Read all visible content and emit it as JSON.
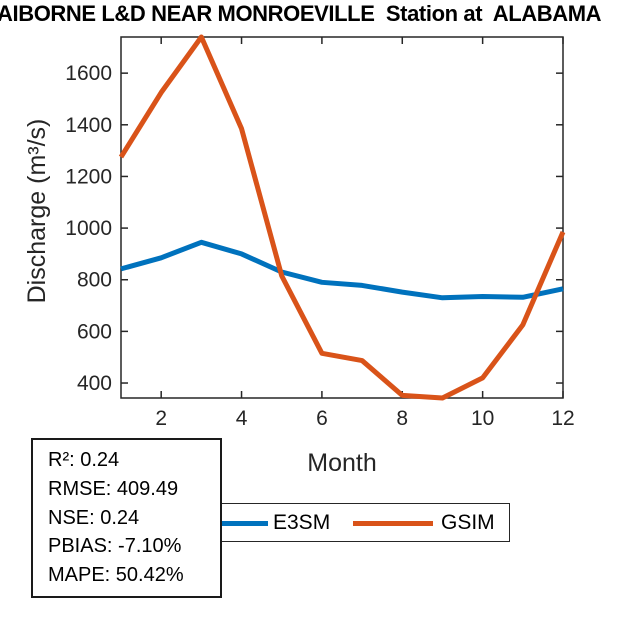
{
  "chart_data": {
    "type": "line",
    "title": "AIBORNE L&D NEAR MONROEVILLE  Station at  ALABAMA",
    "xlabel": "Month",
    "ylabel": "Discharge (m³/s)",
    "x": [
      1,
      2,
      3,
      4,
      5,
      6,
      7,
      8,
      9,
      10,
      11,
      12
    ],
    "xlim": [
      1,
      12
    ],
    "ylim": [
      342,
      1740
    ],
    "xticks": [
      2,
      4,
      6,
      8,
      10,
      12
    ],
    "yticks": [
      400,
      600,
      800,
      1000,
      1200,
      1400,
      1600
    ],
    "grid": false,
    "legend_position": "below-axis",
    "axis_color": "#262626",
    "series": [
      {
        "name": "E3SM",
        "color": "#0072BD",
        "values": [
          842,
          885,
          945,
          900,
          830,
          790,
          778,
          752,
          730,
          735,
          732,
          765
        ]
      },
      {
        "name": "GSIM",
        "color": "#D95319",
        "values": [
          1275,
          1525,
          1740,
          1385,
          815,
          515,
          487,
          352,
          342,
          420,
          625,
          985
        ]
      }
    ]
  },
  "stats_box": {
    "lines": [
      "R²: 0.24",
      "RMSE: 409.49",
      "NSE: 0.24",
      "PBIAS: -7.10%",
      "MAPE: 50.42%"
    ]
  }
}
